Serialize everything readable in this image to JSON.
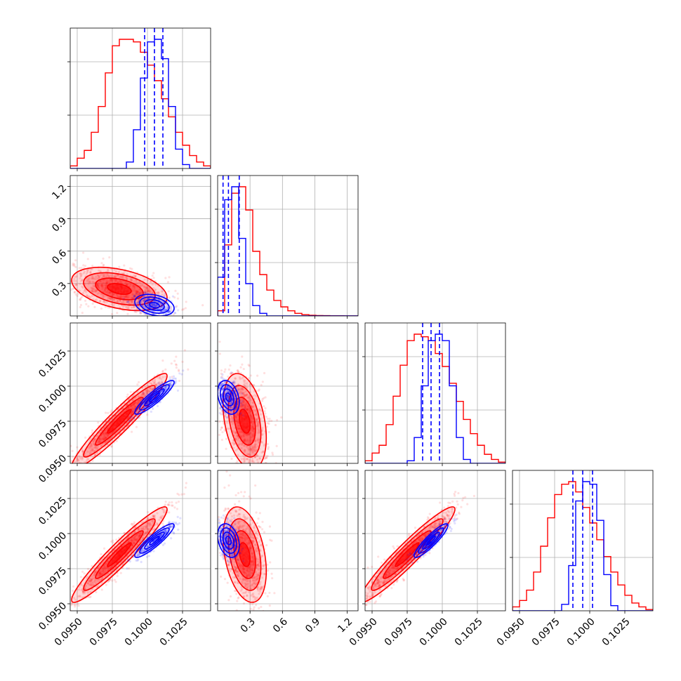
{
  "colors": {
    "red": "#ff0000",
    "blue": "#0000ff",
    "grid": "#b0b0b0"
  },
  "chart_data": {
    "type": "corner",
    "grid": true,
    "params": [
      {
        "range": [
          0.0945,
          0.1045
        ],
        "ticks": [
          0.095,
          0.0975,
          0.1,
          0.1025
        ],
        "tick_labels": [
          "0.0950",
          "0.0975",
          "0.1000",
          "0.1025"
        ]
      },
      {
        "range": [
          0.0,
          1.3
        ],
        "ticks": [
          0.3,
          0.6,
          0.9,
          1.2
        ],
        "tick_labels": [
          "0.3",
          "0.6",
          "0.9",
          "1.2"
        ]
      },
      {
        "range": [
          0.0945,
          0.1045
        ],
        "ticks": [
          0.095,
          0.0975,
          0.1,
          0.1025
        ],
        "tick_labels": [
          "0.0950",
          "0.0975",
          "0.1000",
          "0.1025"
        ]
      },
      {
        "range": [
          0.0945,
          0.1045
        ],
        "ticks": [
          0.095,
          0.0975,
          0.1,
          0.1025
        ],
        "tick_labels": [
          "0.0950",
          "0.0975",
          "0.1000",
          "0.1025"
        ]
      }
    ],
    "series": [
      {
        "color": "#ff0000",
        "histograms": [
          {
            "edges_start": 0.0945,
            "step": 0.0005,
            "counts": [
              0.02,
              0.08,
              0.14,
              0.28,
              0.48,
              0.74,
              0.95,
              1.0,
              1.0,
              0.98,
              0.9,
              0.8,
              0.68,
              0.54,
              0.4,
              0.28,
              0.18,
              0.1,
              0.05,
              0.02
            ]
          },
          {
            "edges_start": 0.0,
            "step": 0.065,
            "counts": [
              0.04,
              0.55,
              0.95,
              1.0,
              0.82,
              0.5,
              0.32,
              0.2,
              0.12,
              0.07,
              0.04,
              0.02,
              0.01,
              0.005,
              0.003,
              0.002,
              0.001,
              0.001,
              0.0,
              0.0
            ]
          },
          {
            "edges_start": 0.0945,
            "step": 0.0005,
            "counts": [
              0.02,
              0.08,
              0.14,
              0.3,
              0.52,
              0.76,
              0.95,
              1.0,
              0.98,
              0.95,
              0.85,
              0.75,
              0.62,
              0.48,
              0.34,
              0.23,
              0.14,
              0.07,
              0.03,
              0.01
            ]
          },
          {
            "edges_start": 0.0945,
            "step": 0.0005,
            "counts": [
              0.03,
              0.08,
              0.16,
              0.3,
              0.5,
              0.72,
              0.9,
              0.98,
              1.0,
              0.92,
              0.8,
              0.68,
              0.55,
              0.42,
              0.3,
              0.2,
              0.12,
              0.06,
              0.03,
              0.01
            ]
          }
        ],
        "means": [
          0.098,
          0.25,
          0.0975,
          0.0985
        ],
        "sds": [
          0.0017,
          0.1,
          0.0017,
          0.0017
        ],
        "corr": [
          [
            1,
            -0.4,
            0.95,
            0.95
          ],
          [
            -0.4,
            1,
            -0.35,
            -0.35
          ],
          [
            0.95,
            -0.35,
            1,
            0.95
          ],
          [
            0.95,
            -0.35,
            0.95,
            1
          ]
        ]
      },
      {
        "color": "#0000ff",
        "histograms": [
          {
            "edges_start": 0.0945,
            "step": 0.0005,
            "counts": [
              0,
              0,
              0,
              0,
              0,
              0,
              0,
              0,
              0.05,
              0.3,
              0.7,
              0.98,
              1.0,
              0.85,
              0.48,
              0.15,
              0.03,
              0,
              0,
              0
            ]
          },
          {
            "edges_start": 0.0,
            "step": 0.065,
            "counts": [
              0.3,
              0.9,
              1.0,
              0.6,
              0.25,
              0.08,
              0.02,
              0,
              0,
              0,
              0,
              0,
              0,
              0,
              0,
              0,
              0,
              0,
              0,
              0
            ]
          },
          {
            "edges_start": 0.0945,
            "step": 0.0005,
            "counts": [
              0,
              0,
              0,
              0,
              0,
              0,
              0.02,
              0.2,
              0.6,
              0.95,
              1.0,
              0.95,
              0.6,
              0.2,
              0.03,
              0,
              0,
              0,
              0,
              0
            ]
          },
          {
            "edges_start": 0.0945,
            "step": 0.0005,
            "counts": [
              0,
              0,
              0,
              0,
              0,
              0,
              0,
              0.05,
              0.35,
              0.85,
              1.0,
              0.98,
              0.7,
              0.28,
              0.04,
              0,
              0,
              0,
              0,
              0
            ]
          }
        ],
        "means": [
          0.1005,
          0.1,
          0.0992,
          0.0995
        ],
        "sds": [
          0.0007,
          0.05,
          0.0006,
          0.0006
        ],
        "corr": [
          [
            1,
            -0.3,
            0.9,
            0.9
          ],
          [
            -0.3,
            1,
            -0.3,
            -0.3
          ],
          [
            0.9,
            -0.3,
            1,
            0.9
          ],
          [
            0.9,
            -0.3,
            0.9,
            1
          ]
        ]
      }
    ],
    "quantile_lines": [
      [
        0.0998,
        0.1005,
        0.1011
      ],
      [
        0.05,
        0.1,
        0.2
      ],
      [
        0.0986,
        0.0992,
        0.0998
      ],
      [
        0.0988,
        0.0995,
        0.1002
      ]
    ],
    "quantile_color": "#0000ff"
  }
}
